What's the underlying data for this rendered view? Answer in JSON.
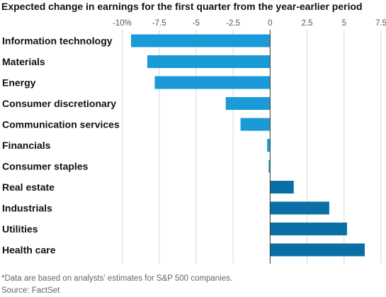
{
  "title": "Expected change in earnings for the first quarter from the year-earlier period",
  "footnote": "*Data are based on analysts' estimates for S&P 500 companies.",
  "source": "Source: FactSet",
  "colors": {
    "negative": "#1a9ad6",
    "positive": "#0a6fa6",
    "grid": "#d6d6d6",
    "zero_line": "#333333",
    "tick_text": "#555555",
    "category_text": "#111111"
  },
  "chart_data": {
    "type": "bar",
    "orientation": "horizontal",
    "title": "Expected change in earnings for the first quarter from the year-earlier period",
    "xlabel": "",
    "ylabel": "",
    "xlim": [
      -10,
      7.5
    ],
    "grid": true,
    "xticks": [
      -10,
      -7.5,
      -5,
      -2.5,
      0,
      2.5,
      5,
      7.5
    ],
    "xtick_labels": [
      "-10%",
      "-7.5",
      "-5",
      "-2.5",
      "0",
      "2.5",
      "5",
      "7.5"
    ],
    "categories": [
      "Information technology",
      "Materials",
      "Energy",
      "Consumer discretionary",
      "Communication services",
      "Financials",
      "Consumer staples",
      "Real estate",
      "Industrials",
      "Utilities",
      "Health care"
    ],
    "values": [
      -9.4,
      -8.3,
      -7.8,
      -3.0,
      -2.0,
      -0.2,
      -0.1,
      1.6,
      4.0,
      5.2,
      6.4
    ],
    "unit": "%"
  }
}
